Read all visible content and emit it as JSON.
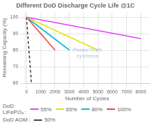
{
  "chart_data": {
    "type": "line",
    "title": "Different DoD Discharge Cycle Life @1C",
    "xlabel": "Number of Cycles",
    "ylabel": "Remaining Capacity (%)",
    "xlim": [
      -100,
      8600
    ],
    "xticks": [
      0,
      1000,
      2000,
      3000,
      4000,
      5000,
      6000,
      7000,
      8000
    ],
    "ylim": [
      60,
      103
    ],
    "yticks": [
      60,
      70,
      80,
      90,
      100
    ],
    "grid": true,
    "legend": "bottom",
    "annotations": [
      "PowerTech\nsystems"
    ],
    "legend_groups": [
      {
        "title": "DoD\nLiFePO₄ :",
        "series": [
          {
            "name": "55%",
            "color": "#e040fb",
            "line_style": "solid",
            "x": [
              0,
              8000
            ],
            "values": [
              100,
              87
            ]
          },
          {
            "name": "65%",
            "color": "#e8e000",
            "line_style": "solid",
            "x": [
              0,
              5000
            ],
            "values": [
              100,
              80
            ]
          },
          {
            "name": "80%",
            "color": "#00bcd4",
            "line_style": "solid",
            "x": [
              0,
              3000
            ],
            "values": [
              100,
              80
            ]
          },
          {
            "name": "100%",
            "color": "#f44336",
            "line_style": "solid",
            "x": [
              0,
              2000
            ],
            "values": [
              100,
              80
            ]
          }
        ]
      },
      {
        "title": "DoD AGM :",
        "series": [
          {
            "name": "50%",
            "color": "#444444",
            "line_style": "dashed",
            "x": [
              0,
              350
            ],
            "values": [
              100,
              60
            ]
          }
        ]
      }
    ]
  }
}
